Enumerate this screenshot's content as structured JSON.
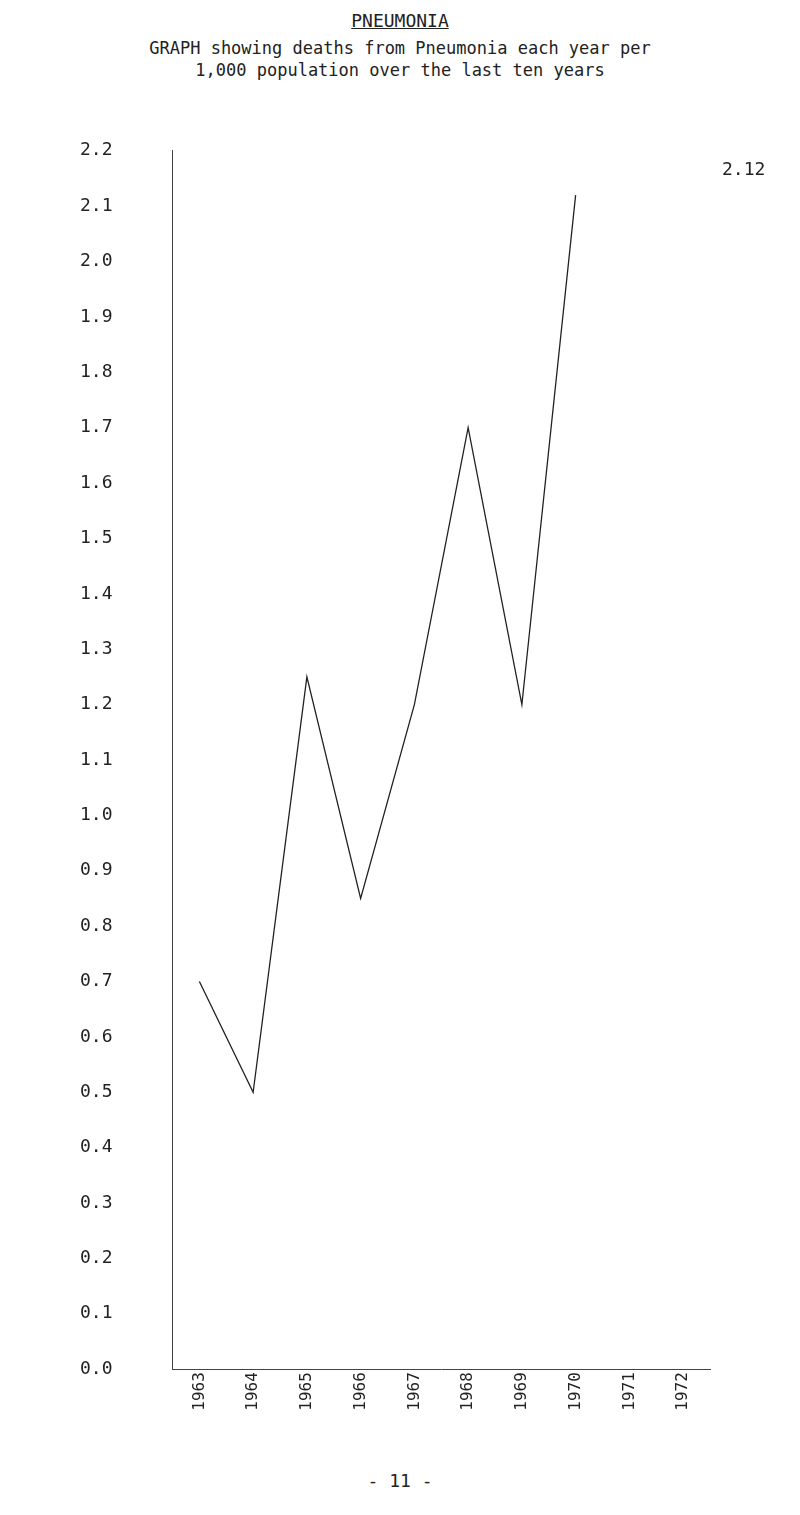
{
  "chart_data": {
    "type": "line",
    "title": "PNEUMONIA",
    "subtitle": "GRAPH showing deaths from Pneumonia each year per 1,000 population over the last ten years",
    "categories": [
      "1963",
      "1964",
      "1965",
      "1966",
      "1967",
      "1968",
      "1969",
      "1970",
      "1971",
      "1972"
    ],
    "values": [
      0.7,
      0.5,
      1.25,
      0.85,
      1.2,
      1.7,
      1.2,
      2.12,
      null,
      null
    ],
    "color": "#222222",
    "ylim": [
      0,
      2.2
    ],
    "yticks": [
      {
        "value": 0,
        "label": "0.0"
      },
      0.1,
      0.2,
      0.3,
      0.4,
      0.5,
      0.6,
      0.7,
      0.8,
      0.9,
      {
        "value": 1,
        "label": "1.0"
      },
      1.1,
      1.2,
      1.3,
      1.4,
      1.5,
      1.6,
      1.7,
      1.8,
      1.9,
      {
        "value": 2,
        "label": "2.0"
      },
      2.1,
      2.2
    ],
    "grid": false,
    "annotations": [
      "2.12"
    ],
    "footer": "- 11 -"
  }
}
